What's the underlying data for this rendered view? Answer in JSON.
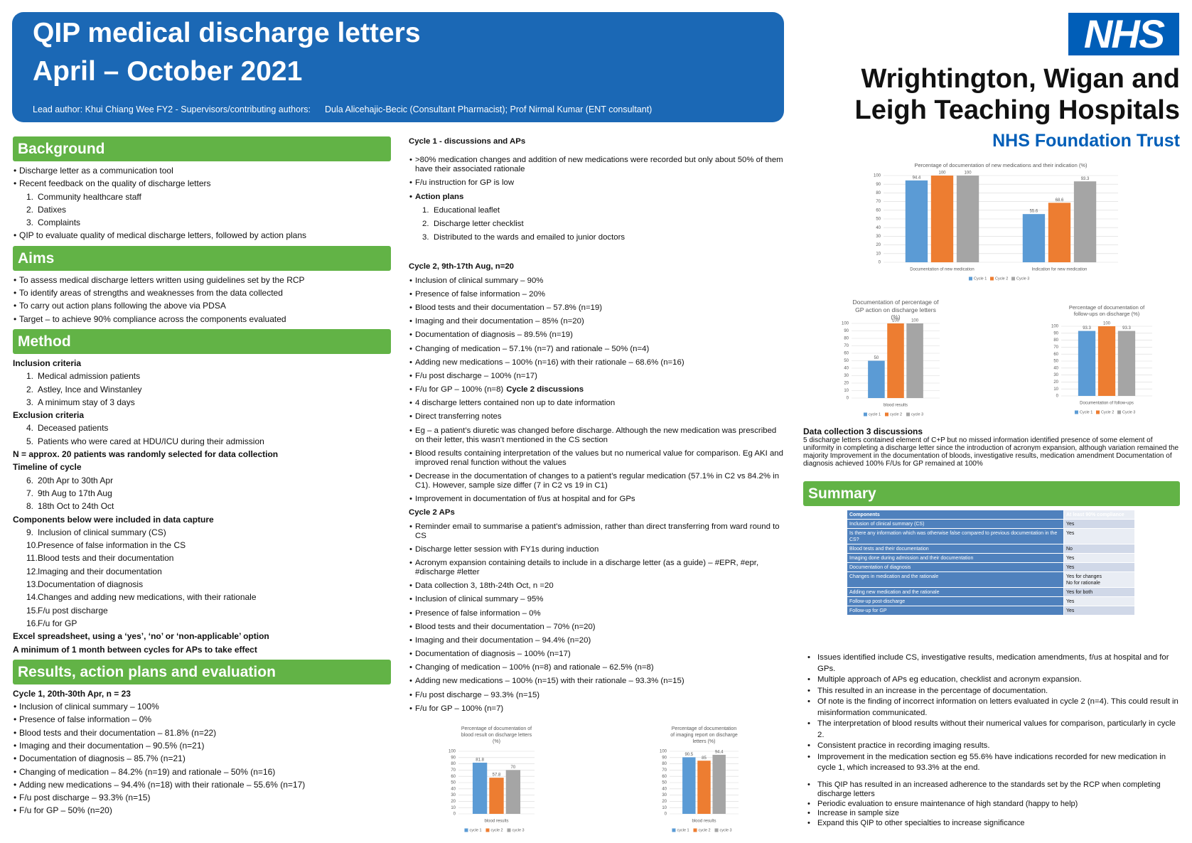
{
  "header": {
    "title_line1": "QIP medical discharge letters",
    "title_line2": "April – October 2021",
    "authors_lead": "Lead author: Khui Chiang Wee FY2 -  Supervisors/contributing authors:",
    "authors_supervisors": "Dula Alicehajic-Becic (Consultant Pharmacist); Prof Nirmal Kumar (ENT consultant)"
  },
  "logo": {
    "badge": "NHS",
    "org_line1": "Wrightington, Wigan and",
    "org_line2": "Leigh Teaching Hospitals",
    "trust": "NHS Foundation Trust"
  },
  "left": [
    {
      "heading": "Background"
    },
    {
      "bullet": "Discharge letter as a communication tool"
    },
    {
      "bullet": "Recent feedback on the quality of discharge letters"
    },
    {
      "num": "1.",
      "item": "Community healthcare staff"
    },
    {
      "num": "2.",
      "item": "Datixes"
    },
    {
      "num": "3.",
      "item": "Complaints"
    },
    {
      "bullet": "QIP to evaluate quality of medical discharge letters, followed by action plans"
    },
    {
      "heading": "Aims"
    },
    {
      "bullet": "To assess medical discharge letters written using guidelines set by the RCP"
    },
    {
      "bullet": "To identify areas of strengths and weaknesses from the data collected"
    },
    {
      "bullet": "To carry out action plans following the above via PDSA"
    },
    {
      "bullet": "Target – to achieve 90% compliance across the components evaluated"
    },
    {
      "heading": "Method"
    },
    {
      "bold": "Inclusion criteria"
    },
    {
      "num": "1.",
      "item": "Medical admission patients"
    },
    {
      "num": "2.",
      "item": "Astley, Ince and Winstanley"
    },
    {
      "num": "3.",
      "item": "A minimum stay of 3 days"
    },
    {
      "bold": "Exclusion criteria"
    },
    {
      "num": "4.",
      "item": "Deceased patients"
    },
    {
      "num": "5.",
      "item": "Patients who were cared at HDU/ICU during their admission"
    },
    {
      "bold": "N = approx. 20 patients was randomly selected for data collection"
    },
    {
      "bold": "Timeline of cycle"
    },
    {
      "num": "6.",
      "item": "20th Apr to 30th Apr"
    },
    {
      "num": "7.",
      "item": "9th Aug to 17th Aug"
    },
    {
      "num": "8.",
      "item": "18th Oct to 24th Oct"
    },
    {
      "bold": "Components below were included in data capture"
    },
    {
      "num": "9.",
      "item": "Inclusion of clinical summary (CS)"
    },
    {
      "num": "10.",
      "item": "Presence of false information in the CS"
    },
    {
      "num": "11.",
      "item": "Blood tests and their documentation"
    },
    {
      "num": "12.",
      "item": "Imaging and their documentation"
    },
    {
      "num": "13.",
      "item": "Documentation of diagnosis"
    },
    {
      "num": "14.",
      "item": "Changes and adding new medications, with their rationale"
    },
    {
      "num": "15.",
      "item": "F/u post discharge"
    },
    {
      "num": "16.",
      "item": "F/u for GP"
    },
    {
      "bold": "Excel spreadsheet, using a ‘yes’, ‘no’ or ‘non-applicable’ option"
    },
    {
      "bold": "A minimum of 1 month between cycles for APs to take effect"
    },
    {
      "heading": "Results, action plans and evaluation"
    },
    {
      "bold": "Cycle 1, 20th-30th Apr, n = 23"
    },
    {
      "bullet": "Inclusion of clinical summary – 100%"
    },
    {
      "bullet": "Presence of false information – 0%"
    },
    {
      "bullet": "Blood tests and their documentation – 81.8% (n=22)"
    },
    {
      "bullet": "Imaging and their documentation – 90.5% (n=21)"
    },
    {
      "bullet": "Documentation of diagnosis – 85.7% (n=21)"
    },
    {
      "bullet": "Changing of medication – 84.2% (n=19) and rationale – 50% (n=16)"
    },
    {
      "bullet": "Adding new medications – 94.4% (n=18) with their rationale – 55.6% (n=17)"
    },
    {
      "bullet": "F/u post discharge – 93.3% (n=15)"
    },
    {
      "bullet": "F/u for GP – 50% (n=20)"
    }
  ],
  "middle": [
    {
      "bold": "Cycle 1 - discussions and APs"
    },
    {
      "bullet": ">80% medication changes and addition of new medications were recorded but only about 50% of them have their associated rationale"
    },
    {
      "bullet": "F/u instruction for GP is low"
    },
    {
      "bullet": "Action plans",
      "strong": true
    },
    {
      "num": "1.",
      "item": "Educational leaflet"
    },
    {
      "num": "2.",
      "item": "Discharge letter checklist"
    },
    {
      "num": "3.",
      "item": "Distributed to the wards and emailed to junior doctors"
    },
    {
      "bold": "Cycle 2, 9th-17th Aug, n=20"
    },
    {
      "bullet": "Inclusion of clinical summary – 90%"
    },
    {
      "bullet": "Presence of false information – 20%"
    },
    {
      "bullet": "Blood tests and their documentation – 57.8% (n=19)"
    },
    {
      "bullet": "Imaging and their documentation – 85% (n=20)"
    },
    {
      "bullet": "Documentation of diagnosis – 89.5% (n=19)"
    },
    {
      "bullet": "Changing of medication – 57.1% (n=7) and rationale – 50% (n=4)"
    },
    {
      "bullet": "Adding new medications – 100% (n=16) with their rationale – 68.6% (n=16)"
    },
    {
      "bullet": "F/u post discharge – 100% (n=17)"
    },
    {
      "bullet": "F/u for GP – 100% (n=8)",
      "bold_tail": "Cycle 2 discussions"
    },
    {
      "bullet": "4 discharge letters contained non up to date information"
    },
    {
      "bullet": "Direct transferring notes"
    },
    {
      "bullet": "Eg – a patient’s diuretic was changed before discharge. Although the new medication was prescribed on their letter, this wasn’t mentioned in the CS section"
    },
    {
      "bullet": "Blood results containing interpretation of the values but no numerical value for comparison. Eg AKI and improved renal function without the values"
    },
    {
      "bullet": "Decrease in the documentation of changes to a patient’s regular medication (57.1% in C2 vs 84.2% in C1). However, sample size differ (7 in C2 vs 19 in C1)"
    },
    {
      "bullet": "Improvement in documentation of f/us at hospital and for GPs"
    },
    {
      "bold": "Cycle 2 APs"
    },
    {
      "bullet": "Reminder email to summarise a patient’s admission, rather than direct transferring from ward round to CS"
    },
    {
      "bullet": "Discharge letter session with FY1s during induction"
    },
    {
      "bullet": "Acronym expansion containing details to include in a discharge letter (as a guide) – #EPR, #epr, #discharge #letter"
    },
    {
      "bullet": "Data collection 3, 18th-24th Oct, n =20"
    },
    {
      "bullet": "Inclusion of clinical summary – 95%"
    },
    {
      "bullet": "Presence of false information – 0%"
    },
    {
      "bullet": "Blood tests and their documentation – 70% (n=20)"
    },
    {
      "bullet": "Imaging and their documentation – 94.4% (n=20)"
    },
    {
      "bullet": "Documentation of diagnosis – 100% (n=17)"
    },
    {
      "bullet": "Changing of medication – 100% (n=8) and rationale – 62.5% (n=8)"
    },
    {
      "bullet": "Adding new medications – 100% (n=15) with their rationale – 93.3% (n=15)"
    },
    {
      "bullet": "F/u post discharge – 93.3% (n=15)"
    },
    {
      "bullet": "F/u for GP – 100% (n=7)"
    }
  ],
  "data_collection_3": {
    "title": "Data collection 3 discussions",
    "text": "5 discharge letters contained element of C+P but no missed information identified presence of some element of uniformity in completing a discharge letter since the introduction of acronym expansion, although variation remained the majority Improvement in the documentation of bloods, investigative results, medication amendment  Documentation of diagnosis achieved 100% F/Us for GP remained at 100%"
  },
  "summary": {
    "heading": "Summary",
    "table": {
      "header": [
        "Components",
        "At least 90% compliance"
      ],
      "rows": [
        [
          "Inclusion of clinical summary (CS)",
          "Yes"
        ],
        [
          "Is there any information which was otherwise false compared to previous documentation in the CS?",
          "Yes"
        ],
        [
          "Blood tests and their documentation",
          "No"
        ],
        [
          "Imaging done during admission and their documentation",
          "Yes"
        ],
        [
          "Documentation of diagnosis",
          "Yes"
        ],
        [
          "Changes in medication and the rationale",
          "Yes for changes\nNo for rationale"
        ],
        [
          "Adding new medication and the rationale",
          "Yes for both"
        ],
        [
          "Follow-up post-discharge",
          "Yes"
        ],
        [
          "Follow-up for GP",
          "Yes"
        ]
      ]
    },
    "points": [
      "Issues identified include CS, investigative results, medication amendments, f/us at hospital and for GPs.",
      "Multiple approach of APs eg education, checklist and acronym expansion.",
      "This resulted in an increase in the percentage of documentation.",
      "Of note is the finding of incorrect information on letters evaluated in cycle 2 (n=4). This could result in misinformation communicated.",
      "The interpretation of blood results without their numerical values for comparison, particularly in cycle 2.",
      "Consistent practice in recording imaging results.",
      "Improvement in the medication section eg 55.6% have indications recorded for new medication in cycle 1, which increased to 93.3% at the end."
    ],
    "conclusions": [
      "This QIP has resulted in an increased adherence to the standards set by the RCP when completing discharge letters",
      "Periodic evaluation to ensure maintenance of high standard (happy to help)",
      "Increase in sample size",
      "Expand this QIP to other specialties to increase significance"
    ]
  },
  "chart_data": [
    {
      "type": "bar",
      "title": "Percentage of documentation of new medications and their indication (%)",
      "categories": [
        "Documentation of new medication",
        "Indication for new medication"
      ],
      "series": [
        {
          "name": "Cycle 1",
          "color": "#5b9bd5",
          "values": [
            94.4,
            55.6
          ]
        },
        {
          "name": "Cycle 2",
          "color": "#ed7d31",
          "values": [
            100,
            68.6
          ]
        },
        {
          "name": "Cycle 3",
          "color": "#a5a5a5",
          "values": [
            100,
            93.3
          ]
        }
      ],
      "ylim": [
        0,
        100
      ],
      "yticks": [
        0,
        10,
        20,
        30,
        40,
        50,
        60,
        70,
        80,
        90,
        100
      ],
      "grid": true,
      "data_labels": true,
      "legend": "bottom"
    },
    {
      "type": "bar",
      "title": "Documentation of percentage of GP action on discharge letters (%)",
      "categories": [
        "blood results"
      ],
      "series": [
        {
          "name": "cycle 1",
          "color": "#5b9bd5",
          "values": [
            50
          ]
        },
        {
          "name": "cycle 2",
          "color": "#ed7d31",
          "values": [
            100
          ]
        },
        {
          "name": "cycle 3",
          "color": "#a5a5a5",
          "values": [
            100
          ]
        }
      ],
      "ylim": [
        0,
        100
      ],
      "yticks": [
        0,
        10,
        20,
        30,
        40,
        50,
        60,
        70,
        80,
        90,
        100
      ],
      "grid": true,
      "data_labels": true,
      "legend": "bottom"
    },
    {
      "type": "bar",
      "title": "Percentage of documentation of follow-ups on discharge (%)",
      "categories": [
        "Documentation of follow-ups"
      ],
      "series": [
        {
          "name": "Cycle 1",
          "color": "#5b9bd5",
          "values": [
            93.3
          ]
        },
        {
          "name": "Cycle 2",
          "color": "#ed7d31",
          "values": [
            100
          ]
        },
        {
          "name": "Cycle 3",
          "color": "#a5a5a5",
          "values": [
            93.3
          ]
        }
      ],
      "ylim": [
        0,
        100
      ],
      "yticks": [
        0,
        10,
        20,
        30,
        40,
        50,
        60,
        70,
        80,
        90,
        100
      ],
      "grid": true,
      "data_labels": true,
      "legend": "bottom"
    },
    {
      "type": "bar",
      "title": "Percentage of documentation of blood result on discharge letters (%)",
      "categories": [
        "blood results"
      ],
      "series": [
        {
          "name": "cycle 1",
          "color": "#5b9bd5",
          "values": [
            81.8
          ]
        },
        {
          "name": "cycle 2",
          "color": "#ed7d31",
          "values": [
            57.8
          ]
        },
        {
          "name": "cycle 3",
          "color": "#a5a5a5",
          "values": [
            70
          ]
        }
      ],
      "ylim": [
        0,
        100
      ],
      "yticks": [
        0,
        10,
        20,
        30,
        40,
        50,
        60,
        70,
        80,
        90,
        100
      ],
      "grid": true,
      "data_labels": true,
      "legend": "bottom"
    },
    {
      "type": "bar",
      "title": "Percentage of documentation of imaging report on discharge letters (%)",
      "categories": [
        "blood results"
      ],
      "series": [
        {
          "name": "cycle 1",
          "color": "#5b9bd5",
          "values": [
            90.5
          ]
        },
        {
          "name": "cycle 2",
          "color": "#ed7d31",
          "values": [
            85
          ]
        },
        {
          "name": "cycle 3",
          "color": "#a5a5a5",
          "values": [
            94.4
          ]
        }
      ],
      "ylim": [
        0,
        100
      ],
      "yticks": [
        0,
        10,
        20,
        30,
        40,
        50,
        60,
        70,
        80,
        90,
        100
      ],
      "grid": true,
      "data_labels": true,
      "legend": "bottom"
    }
  ]
}
